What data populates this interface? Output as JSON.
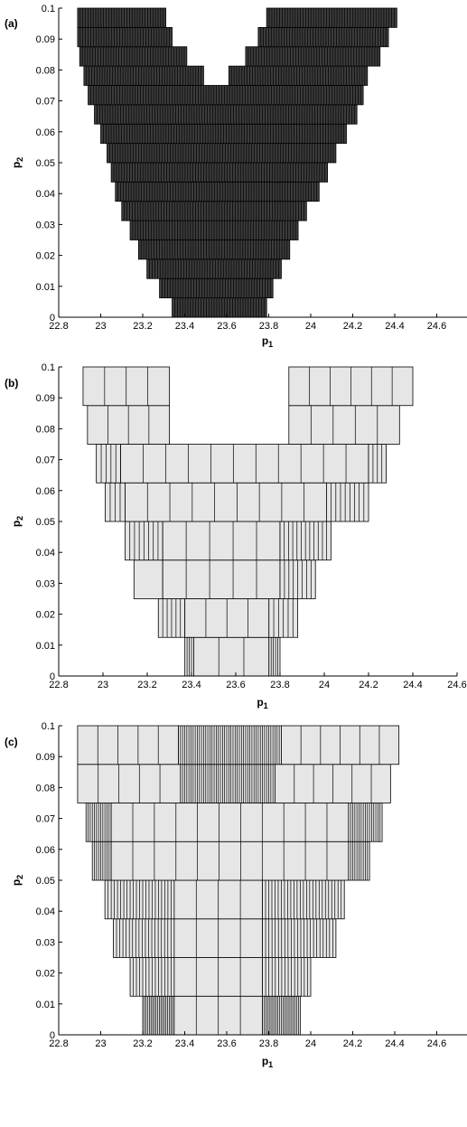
{
  "chart_data": [
    {
      "type": "bar",
      "panel_label": "(a)",
      "xlabel": {
        "text": "p",
        "sub": "1"
      },
      "ylabel": {
        "text": "p",
        "sub": "2"
      },
      "xlim": [
        22.8,
        24.8
      ],
      "ylim": [
        0,
        0.1
      ],
      "xticks": [
        "22.8",
        "23",
        "23.2",
        "23.4",
        "23.6",
        "23.8",
        "24",
        "24.2",
        "24.4",
        "24.6"
      ],
      "yticks": [
        "0",
        "0.01",
        "0.02",
        "0.03",
        "0.04",
        "0.05",
        "0.06",
        "0.07",
        "0.08",
        "0.09",
        "0.1"
      ],
      "fill": "#3c3c3c",
      "rows": [
        {
          "y0": 0.0,
          "y1": 0.00625,
          "segs": [
            [
              23.34,
              23.79,
              0.0125
            ]
          ]
        },
        {
          "y0": 0.00625,
          "y1": 0.0125,
          "segs": [
            [
              23.28,
              23.82,
              0.0125
            ]
          ]
        },
        {
          "y0": 0.0125,
          "y1": 0.01875,
          "segs": [
            [
              23.22,
              23.86,
              0.0125
            ]
          ]
        },
        {
          "y0": 0.01875,
          "y1": 0.025,
          "segs": [
            [
              23.18,
              23.9,
              0.0125
            ]
          ]
        },
        {
          "y0": 0.025,
          "y1": 0.03125,
          "segs": [
            [
              23.14,
              23.94,
              0.0125
            ]
          ]
        },
        {
          "y0": 0.03125,
          "y1": 0.0375,
          "segs": [
            [
              23.1,
              23.98,
              0.0125
            ]
          ]
        },
        {
          "y0": 0.0375,
          "y1": 0.04375,
          "segs": [
            [
              23.07,
              24.04,
              0.0125
            ]
          ]
        },
        {
          "y0": 0.04375,
          "y1": 0.05,
          "segs": [
            [
              23.05,
              24.08,
              0.0125
            ]
          ]
        },
        {
          "y0": 0.05,
          "y1": 0.05625,
          "segs": [
            [
              23.03,
              24.12,
              0.0125
            ]
          ]
        },
        {
          "y0": 0.05625,
          "y1": 0.0625,
          "segs": [
            [
              23.0,
              24.17,
              0.0125
            ]
          ]
        },
        {
          "y0": 0.0625,
          "y1": 0.06875,
          "segs": [
            [
              22.97,
              24.22,
              0.0125
            ]
          ]
        },
        {
          "y0": 0.06875,
          "y1": 0.075,
          "segs": [
            [
              22.94,
              24.25,
              0.0125
            ]
          ]
        },
        {
          "y0": 0.075,
          "y1": 0.08125,
          "segs": [
            [
              22.92,
              23.49,
              0.0125
            ],
            [
              23.61,
              24.27,
              0.0125
            ]
          ]
        },
        {
          "y0": 0.08125,
          "y1": 0.0875,
          "segs": [
            [
              22.9,
              23.41,
              0.0125
            ],
            [
              23.69,
              24.33,
              0.0125
            ]
          ]
        },
        {
          "y0": 0.0875,
          "y1": 0.09375,
          "segs": [
            [
              22.89,
              23.34,
              0.0125
            ],
            [
              23.75,
              24.37,
              0.0125
            ]
          ]
        },
        {
          "y0": 0.09375,
          "y1": 0.1,
          "segs": [
            [
              22.89,
              23.31,
              0.0125
            ],
            [
              23.79,
              24.41,
              0.0125
            ]
          ]
        }
      ]
    },
    {
      "type": "bar",
      "panel_label": "(b)",
      "xlabel": {
        "text": "p",
        "sub": "1"
      },
      "ylabel": {
        "text": "p",
        "sub": "2"
      },
      "xlim": [
        22.8,
        24.6
      ],
      "ylim": [
        0,
        0.1
      ],
      "xticks": [
        "22.8",
        "23",
        "23.2",
        "23.4",
        "23.6",
        "23.8",
        "24",
        "24.2",
        "24.4",
        "24.6"
      ],
      "yticks": [
        "0",
        "0.01",
        "0.02",
        "0.03",
        "0.04",
        "0.05",
        "0.06",
        "0.07",
        "0.08",
        "0.09",
        "0.1"
      ],
      "fill": "#e6e6e6",
      "rows": [
        {
          "y0": 0.0,
          "y1": 0.0125,
          "segs": [
            [
              23.37,
              23.41,
              0.01
            ],
            [
              23.41,
              23.75,
              0.1
            ],
            [
              23.75,
              23.8,
              0.01
            ]
          ]
        },
        {
          "y0": 0.0125,
          "y1": 0.025,
          "segs": [
            [
              23.25,
              23.37,
              0.02
            ],
            [
              23.37,
              23.75,
              0.1
            ],
            [
              23.75,
              23.88,
              0.02
            ]
          ]
        },
        {
          "y0": 0.025,
          "y1": 0.0375,
          "segs": [
            [
              23.14,
              23.27,
              0.1
            ],
            [
              23.27,
              23.8,
              0.1
            ],
            [
              23.8,
              23.96,
              0.02
            ]
          ]
        },
        {
          "y0": 0.0375,
          "y1": 0.05,
          "segs": [
            [
              23.1,
              23.27,
              0.02
            ],
            [
              23.27,
              23.8,
              0.1
            ],
            [
              23.8,
              24.03,
              0.02
            ]
          ]
        },
        {
          "y0": 0.05,
          "y1": 0.0625,
          "segs": [
            [
              23.01,
              23.1,
              0.02
            ],
            [
              23.1,
              24.01,
              0.1
            ],
            [
              24.01,
              24.2,
              0.02
            ]
          ]
        },
        {
          "y0": 0.0625,
          "y1": 0.075,
          "segs": [
            [
              22.97,
              23.08,
              0.02
            ],
            [
              23.08,
              24.2,
              0.1
            ],
            [
              24.2,
              24.28,
              0.02
            ]
          ]
        },
        {
          "y0": 0.075,
          "y1": 0.0875,
          "segs": [
            [
              22.93,
              23.3,
              0.1
            ],
            [
              23.84,
              24.34,
              0.1
            ]
          ]
        },
        {
          "y0": 0.0875,
          "y1": 0.1,
          "segs": [
            [
              22.91,
              23.3,
              0.1
            ],
            [
              23.84,
              24.4,
              0.1
            ]
          ]
        }
      ]
    },
    {
      "type": "bar",
      "panel_label": "(c)",
      "xlabel": {
        "text": "p",
        "sub": "1"
      },
      "ylabel": {
        "text": "p",
        "sub": "2"
      },
      "xlim": [
        22.8,
        24.8
      ],
      "ylim": [
        0,
        0.1
      ],
      "xticks": [
        "22.8",
        "23",
        "23.2",
        "23.4",
        "23.6",
        "23.8",
        "24",
        "24.2",
        "24.4",
        "24.6"
      ],
      "yticks": [
        "0",
        "0.01",
        "0.02",
        "0.03",
        "0.04",
        "0.05",
        "0.06",
        "0.07",
        "0.08",
        "0.09",
        "0.1"
      ],
      "fill": "#e6e6e6",
      "rows": [
        {
          "y0": 0.0,
          "y1": 0.0125,
          "segs": [
            [
              23.2,
              23.35,
              0.008
            ],
            [
              23.35,
              23.77,
              0.1
            ],
            [
              23.77,
              23.95,
              0.008
            ]
          ]
        },
        {
          "y0": 0.0125,
          "y1": 0.025,
          "segs": [
            [
              23.14,
              23.35,
              0.015
            ],
            [
              23.35,
              23.77,
              0.1
            ],
            [
              23.77,
              24.0,
              0.015
            ]
          ]
        },
        {
          "y0": 0.025,
          "y1": 0.0375,
          "segs": [
            [
              23.06,
              23.35,
              0.015
            ],
            [
              23.35,
              23.77,
              0.1
            ],
            [
              23.77,
              24.12,
              0.015
            ]
          ]
        },
        {
          "y0": 0.0375,
          "y1": 0.05,
          "segs": [
            [
              23.02,
              23.35,
              0.015
            ],
            [
              23.35,
              23.77,
              0.1
            ],
            [
              23.77,
              24.16,
              0.015
            ]
          ]
        },
        {
          "y0": 0.05,
          "y1": 0.0625,
          "segs": [
            [
              22.96,
              23.05,
              0.01
            ],
            [
              23.05,
              24.18,
              0.1
            ],
            [
              24.18,
              24.28,
              0.01
            ]
          ]
        },
        {
          "y0": 0.0625,
          "y1": 0.075,
          "segs": [
            [
              22.93,
              23.05,
              0.01
            ],
            [
              23.05,
              24.18,
              0.1
            ],
            [
              24.18,
              24.34,
              0.01
            ]
          ]
        },
        {
          "y0": 0.075,
          "y1": 0.0875,
          "segs": [
            [
              22.89,
              23.38,
              0.1
            ],
            [
              23.38,
              23.83,
              0.01
            ],
            [
              23.83,
              24.38,
              0.1
            ]
          ]
        },
        {
          "y0": 0.0875,
          "y1": 0.1,
          "segs": [
            [
              22.89,
              23.37,
              0.1
            ],
            [
              23.37,
              23.86,
              0.01
            ],
            [
              23.86,
              24.42,
              0.1
            ]
          ]
        }
      ]
    }
  ]
}
